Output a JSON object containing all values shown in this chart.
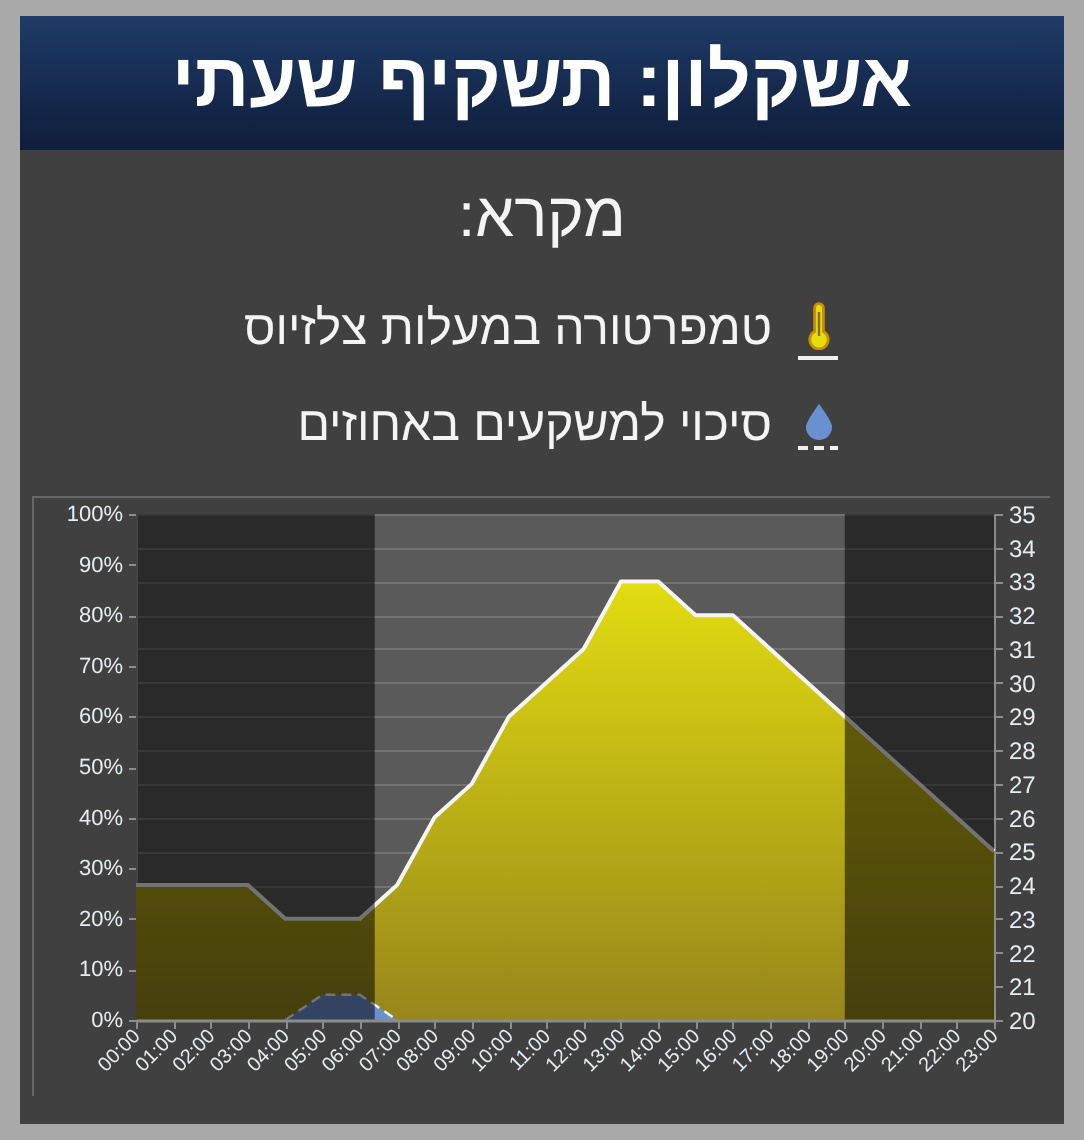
{
  "chart_data": {
    "type": "area",
    "title": "אשקלון: תשקיף שעתי",
    "legend_title": "מקרא:",
    "x": [
      0,
      1,
      2,
      3,
      4,
      5,
      6,
      7,
      8,
      9,
      10,
      11,
      12,
      13,
      14,
      15,
      16,
      17,
      18,
      19,
      20,
      21,
      22,
      23
    ],
    "xlim": [
      0,
      23
    ],
    "xticks": [
      {
        "value": 0,
        "label": "00:00"
      },
      {
        "value": 1,
        "label": "01:00"
      },
      {
        "value": 2,
        "label": "02:00"
      },
      {
        "value": 3,
        "label": "03:00"
      },
      {
        "value": 4,
        "label": "04:00"
      },
      {
        "value": 5,
        "label": "05:00"
      },
      {
        "value": 6,
        "label": "06:00"
      },
      {
        "value": 7,
        "label": "07:00"
      },
      {
        "value": 8,
        "label": "08:00"
      },
      {
        "value": 9,
        "label": "09:00"
      },
      {
        "value": 10,
        "label": "10:00"
      },
      {
        "value": 11,
        "label": "11:00"
      },
      {
        "value": 12,
        "label": "12:00"
      },
      {
        "value": 13,
        "label": "13:00"
      },
      {
        "value": 14,
        "label": "14:00"
      },
      {
        "value": 15,
        "label": "15:00"
      },
      {
        "value": 16,
        "label": "16:00"
      },
      {
        "value": 17,
        "label": "17:00"
      },
      {
        "value": 18,
        "label": "18:00"
      },
      {
        "value": 19,
        "label": "19:00"
      },
      {
        "value": 20,
        "label": "20:00"
      },
      {
        "value": 21,
        "label": "21:00"
      },
      {
        "value": 22,
        "label": "22:00"
      },
      {
        "value": 23,
        "label": "23:00"
      }
    ],
    "ylim": [
      0,
      100
    ],
    "yticks": [
      {
        "value": 0,
        "label": "0%"
      },
      {
        "value": 10,
        "label": "10%"
      },
      {
        "value": 20,
        "label": "20%"
      },
      {
        "value": 30,
        "label": "30%"
      },
      {
        "value": 40,
        "label": "40%"
      },
      {
        "value": 50,
        "label": "50%"
      },
      {
        "value": 60,
        "label": "60%"
      },
      {
        "value": 70,
        "label": "70%"
      },
      {
        "value": 80,
        "label": "80%"
      },
      {
        "value": 90,
        "label": "90%"
      },
      {
        "value": 100,
        "label": "100%"
      }
    ],
    "y2lim": [
      20,
      35
    ],
    "y2ticks": [
      20,
      21,
      22,
      23,
      24,
      25,
      26,
      27,
      28,
      29,
      30,
      31,
      32,
      33,
      34,
      35
    ],
    "series": [
      {
        "name": "טמפרטורה במעלות צלזיוס",
        "color": "#e2dc10",
        "axis": "y2",
        "line_style": "solid",
        "values": [
          24,
          24,
          24,
          24,
          23,
          23,
          23,
          24,
          26,
          27,
          29,
          30,
          31,
          33,
          33,
          32,
          32,
          31,
          30,
          29,
          28,
          27,
          26,
          25
        ]
      },
      {
        "name": "סיכוי למשקעים באחוזים",
        "color": "#6a90d0",
        "axis": "y",
        "line_style": "dashed",
        "values": [
          null,
          null,
          null,
          null,
          0,
          5,
          5,
          0,
          null,
          null,
          null,
          null,
          null,
          null,
          null,
          null,
          null,
          null,
          null,
          null,
          null,
          null,
          null,
          null
        ]
      }
    ],
    "bands": [
      {
        "axis": "x",
        "from": 0,
        "to": 6.4
      },
      {
        "axis": "x",
        "from": 19,
        "to": 23
      }
    ],
    "grid": "y2",
    "legend": "top"
  }
}
